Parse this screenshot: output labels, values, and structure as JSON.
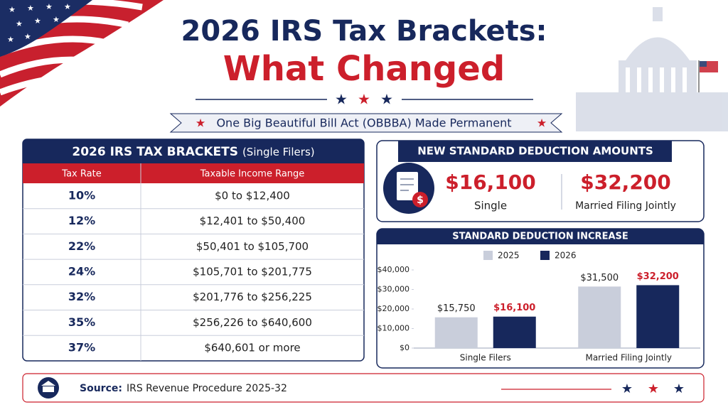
{
  "header": {
    "title_line1": "2026 IRS Tax Brackets:",
    "title_line2": "What Changed",
    "subtitle": "One Big Beautiful Bill Act (OBBBA) Made Permanent"
  },
  "table": {
    "title": "2026 IRS TAX BRACKETS",
    "title_note": "(Single Filers)",
    "columns": [
      "Tax Rate",
      "Taxable Income Range"
    ],
    "rows": [
      [
        "10%",
        "$0 to $12,400"
      ],
      [
        "12%",
        "$12,401 to $50,400"
      ],
      [
        "22%",
        "$50,401 to $105,700"
      ],
      [
        "24%",
        "$105,701 to $201,775"
      ],
      [
        "32%",
        "$201,776 to $256,225"
      ],
      [
        "35%",
        "$256,226 to $640,600"
      ],
      [
        "37%",
        "$640,601 or more"
      ]
    ]
  },
  "deduction": {
    "title": "NEW STANDARD DEDUCTION AMOUNTS",
    "items": [
      {
        "amount": "$16,100",
        "label": "Single"
      },
      {
        "amount": "$32,200",
        "label": "Married Filing Jointly"
      }
    ]
  },
  "chart_data": {
    "type": "bar",
    "title": "STANDARD DEDUCTION INCREASE",
    "categories": [
      "Single Filers",
      "Married Filing Jointly"
    ],
    "series": [
      {
        "name": "2025",
        "color": "#c9cedb",
        "values": [
          15750,
          31500
        ],
        "value_labels": [
          "$15,750",
          "$31,500"
        ]
      },
      {
        "name": "2026",
        "color": "#17285c",
        "values": [
          16100,
          32200
        ],
        "value_labels": [
          "$16,100",
          "$32,200"
        ]
      }
    ],
    "ylim": [
      0,
      40000
    ],
    "yticks": [
      {
        "value": 0,
        "label": "$0"
      },
      {
        "value": 10000,
        "label": "$10,000"
      },
      {
        "value": 20000,
        "label": "$20,000"
      },
      {
        "value": 30000,
        "label": "$30,000"
      },
      {
        "value": 40000,
        "label": "$40,000"
      }
    ],
    "grid": false,
    "legend": "top"
  },
  "footer": {
    "source_label": "Source:",
    "source": "IRS Revenue Procedure 2025-32"
  }
}
